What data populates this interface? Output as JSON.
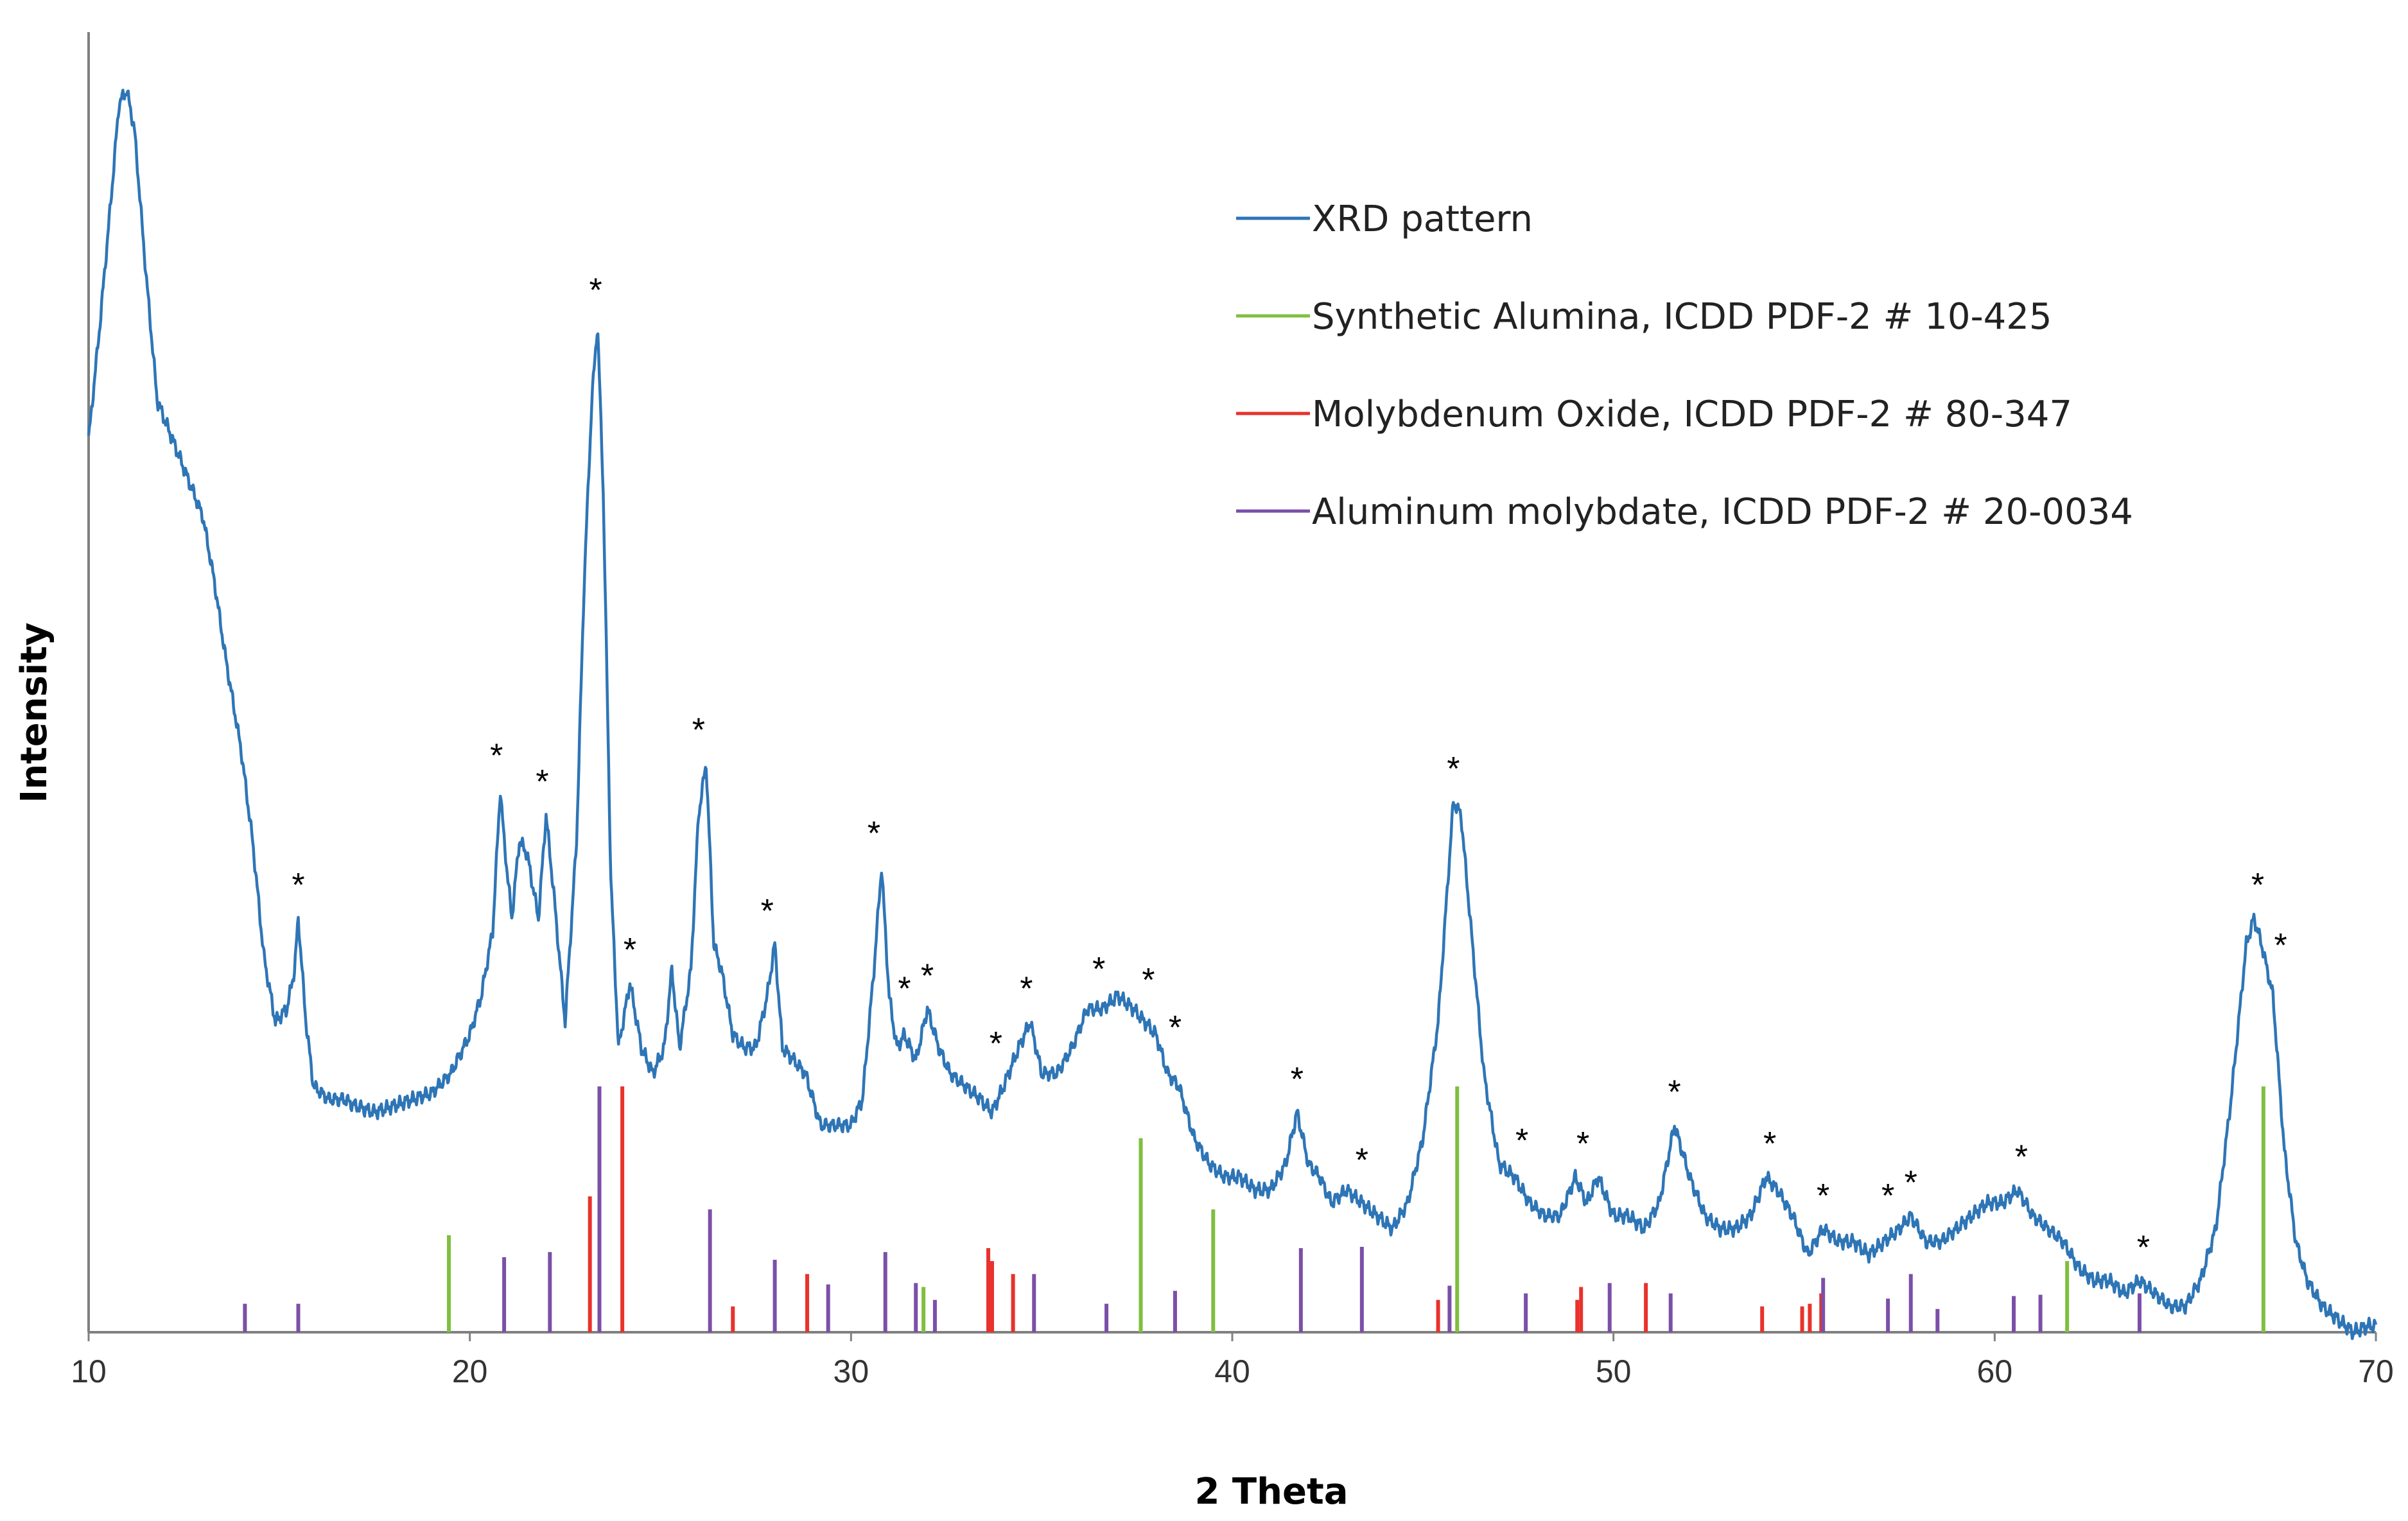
{
  "chart_data": {
    "type": "line",
    "title": "",
    "xlabel": "2 Theta",
    "ylabel": "Intensity",
    "xlim": [
      10,
      70
    ],
    "ylim": [
      0,
      100
    ],
    "xticks": [
      10,
      20,
      30,
      40,
      50,
      60,
      70
    ],
    "series": [
      {
        "name": "XRD pattern",
        "color": "#2E75B6",
        "points": [
          [
            10.0,
            69
          ],
          [
            10.3,
            78
          ],
          [
            10.6,
            88
          ],
          [
            10.8,
            95
          ],
          [
            11.0,
            96
          ],
          [
            11.2,
            93
          ],
          [
            11.5,
            82
          ],
          [
            11.8,
            72
          ],
          [
            12.2,
            69
          ],
          [
            12.6,
            66
          ],
          [
            13.0,
            63
          ],
          [
            13.3,
            58
          ],
          [
            13.6,
            52
          ],
          [
            14.0,
            45
          ],
          [
            14.3,
            38
          ],
          [
            14.6,
            29
          ],
          [
            14.9,
            24
          ],
          [
            15.2,
            25
          ],
          [
            15.4,
            28
          ],
          [
            15.5,
            32
          ],
          [
            15.7,
            24
          ],
          [
            15.9,
            19
          ],
          [
            16.3,
            18
          ],
          [
            16.7,
            18
          ],
          [
            17.0,
            17.5
          ],
          [
            17.5,
            17
          ],
          [
            18.0,
            17.5
          ],
          [
            18.5,
            18
          ],
          [
            19.0,
            18.5
          ],
          [
            19.5,
            20
          ],
          [
            20.0,
            23
          ],
          [
            20.3,
            26
          ],
          [
            20.6,
            31
          ],
          [
            20.8,
            42
          ],
          [
            20.9,
            38
          ],
          [
            21.1,
            32
          ],
          [
            21.3,
            38
          ],
          [
            21.5,
            37
          ],
          [
            21.8,
            32
          ],
          [
            22.0,
            40
          ],
          [
            22.2,
            34
          ],
          [
            22.5,
            24
          ],
          [
            22.8,
            38
          ],
          [
            23.0,
            58
          ],
          [
            23.2,
            72
          ],
          [
            23.35,
            78
          ],
          [
            23.5,
            65
          ],
          [
            23.7,
            35
          ],
          [
            23.9,
            22
          ],
          [
            24.2,
            27
          ],
          [
            24.5,
            22
          ],
          [
            24.8,
            20
          ],
          [
            25.1,
            22
          ],
          [
            25.3,
            28
          ],
          [
            25.5,
            22
          ],
          [
            25.8,
            28
          ],
          [
            26.0,
            40
          ],
          [
            26.2,
            44
          ],
          [
            26.4,
            30
          ],
          [
            26.6,
            28
          ],
          [
            26.9,
            23
          ],
          [
            27.2,
            22
          ],
          [
            27.5,
            22
          ],
          [
            27.8,
            26
          ],
          [
            28.0,
            30
          ],
          [
            28.2,
            22
          ],
          [
            28.5,
            21
          ],
          [
            28.8,
            20
          ],
          [
            29.2,
            16
          ],
          [
            29.6,
            16
          ],
          [
            30.0,
            16
          ],
          [
            30.3,
            18
          ],
          [
            30.6,
            28
          ],
          [
            30.8,
            36
          ],
          [
            31.0,
            26
          ],
          [
            31.2,
            22
          ],
          [
            31.4,
            23
          ],
          [
            31.7,
            21
          ],
          [
            32.0,
            25
          ],
          [
            32.3,
            22
          ],
          [
            32.6,
            20
          ],
          [
            33.0,
            19
          ],
          [
            33.4,
            18
          ],
          [
            33.7,
            17
          ],
          [
            34.0,
            19
          ],
          [
            34.4,
            22
          ],
          [
            34.7,
            24
          ],
          [
            35.0,
            20
          ],
          [
            35.4,
            20
          ],
          [
            35.8,
            22
          ],
          [
            36.2,
            25
          ],
          [
            36.6,
            25
          ],
          [
            37.0,
            26
          ],
          [
            37.4,
            25
          ],
          [
            37.7,
            24
          ],
          [
            38.0,
            23
          ],
          [
            38.3,
            20
          ],
          [
            38.6,
            19
          ],
          [
            39.0,
            15
          ],
          [
            39.4,
            13
          ],
          [
            39.8,
            12
          ],
          [
            40.2,
            12
          ],
          [
            40.6,
            11
          ],
          [
            41.0,
            11
          ],
          [
            41.4,
            13
          ],
          [
            41.7,
            17
          ],
          [
            42.0,
            13
          ],
          [
            42.3,
            12
          ],
          [
            42.6,
            10
          ],
          [
            43.0,
            11
          ],
          [
            43.4,
            10
          ],
          [
            43.8,
            9
          ],
          [
            44.2,
            8
          ],
          [
            44.6,
            10
          ],
          [
            45.0,
            15
          ],
          [
            45.4,
            24
          ],
          [
            45.8,
            41
          ],
          [
            46.0,
            40
          ],
          [
            46.3,
            30
          ],
          [
            46.6,
            20
          ],
          [
            47.0,
            13
          ],
          [
            47.4,
            12
          ],
          [
            47.8,
            10
          ],
          [
            48.2,
            9
          ],
          [
            48.6,
            9
          ],
          [
            49.0,
            12
          ],
          [
            49.3,
            10
          ],
          [
            49.6,
            12
          ],
          [
            50.0,
            9
          ],
          [
            50.4,
            9
          ],
          [
            50.8,
            8
          ],
          [
            51.2,
            10
          ],
          [
            51.6,
            16
          ],
          [
            52.0,
            12
          ],
          [
            52.4,
            9
          ],
          [
            52.8,
            8
          ],
          [
            53.2,
            8
          ],
          [
            53.6,
            9
          ],
          [
            54.0,
            12
          ],
          [
            54.3,
            11
          ],
          [
            54.7,
            9
          ],
          [
            55.1,
            6
          ],
          [
            55.5,
            8
          ],
          [
            55.9,
            7
          ],
          [
            56.3,
            7
          ],
          [
            56.7,
            6
          ],
          [
            57.1,
            7
          ],
          [
            57.5,
            8
          ],
          [
            57.8,
            9
          ],
          [
            58.2,
            7
          ],
          [
            58.6,
            7
          ],
          [
            59.0,
            8
          ],
          [
            59.4,
            9
          ],
          [
            59.8,
            10
          ],
          [
            60.2,
            10
          ],
          [
            60.6,
            11
          ],
          [
            61.0,
            9
          ],
          [
            61.4,
            8
          ],
          [
            61.8,
            7
          ],
          [
            62.2,
            5
          ],
          [
            62.6,
            4
          ],
          [
            63.0,
            4
          ],
          [
            63.4,
            3
          ],
          [
            63.8,
            4
          ],
          [
            64.2,
            3
          ],
          [
            64.6,
            2
          ],
          [
            65.0,
            2
          ],
          [
            65.4,
            4
          ],
          [
            65.8,
            8
          ],
          [
            66.2,
            18
          ],
          [
            66.6,
            30
          ],
          [
            66.8,
            32
          ],
          [
            67.0,
            30
          ],
          [
            67.3,
            26
          ],
          [
            67.6,
            14
          ],
          [
            67.9,
            7
          ],
          [
            68.2,
            4
          ],
          [
            68.6,
            2
          ],
          [
            69.0,
            1
          ],
          [
            69.4,
            0
          ],
          [
            69.8,
            0.5
          ],
          [
            70.0,
            0.5
          ]
        ]
      },
      {
        "name": "Synthetic Alumina, ICDD PDF-2 # 10-425",
        "color": "#7FBF3F",
        "sticks": [
          [
            19.45,
            7.5
          ],
          [
            31.9,
            3.5
          ],
          [
            37.6,
            15
          ],
          [
            39.5,
            9.5
          ],
          [
            45.9,
            19
          ],
          [
            61.9,
            5.5
          ],
          [
            67.05,
            19
          ]
        ]
      },
      {
        "name": "Molybdenum Oxide, ICDD PDF-2 # 80-347",
        "color": "#E8322B",
        "sticks": [
          [
            23.15,
            10.5
          ],
          [
            24.0,
            19
          ],
          [
            26.9,
            2
          ],
          [
            28.85,
            4.5
          ],
          [
            33.6,
            6.5
          ],
          [
            33.7,
            5.5
          ],
          [
            34.25,
            4.5
          ],
          [
            45.4,
            2.5
          ],
          [
            49.05,
            2.5
          ],
          [
            49.15,
            3.5
          ],
          [
            50.85,
            3.8
          ],
          [
            53.9,
            2
          ],
          [
            54.95,
            2
          ],
          [
            55.15,
            2.2
          ],
          [
            55.45,
            3
          ]
        ]
      },
      {
        "name": "Aluminum molybdate, ICDD PDF-2 # 20-0034",
        "color": "#7B4FA8",
        "sticks": [
          [
            14.1,
            2.2
          ],
          [
            15.5,
            2.2
          ],
          [
            20.9,
            5.8
          ],
          [
            22.1,
            6.2
          ],
          [
            23.4,
            19
          ],
          [
            26.3,
            9.5
          ],
          [
            28.0,
            5.6
          ],
          [
            29.4,
            3.7
          ],
          [
            30.9,
            6.2
          ],
          [
            31.7,
            3.8
          ],
          [
            32.2,
            2.5
          ],
          [
            34.8,
            4.5
          ],
          [
            36.7,
            2.2
          ],
          [
            38.5,
            3.2
          ],
          [
            41.8,
            6.5
          ],
          [
            43.4,
            6.6
          ],
          [
            45.7,
            3.6
          ],
          [
            47.7,
            3
          ],
          [
            49.9,
            3.8
          ],
          [
            51.5,
            3
          ],
          [
            55.5,
            4.2
          ],
          [
            57.2,
            2.6
          ],
          [
            57.8,
            4.5
          ],
          [
            58.5,
            1.8
          ],
          [
            60.5,
            2.8
          ],
          [
            61.2,
            2.9
          ],
          [
            63.8,
            3
          ]
        ]
      }
    ],
    "legend": {
      "placement": "top-right",
      "entries": [
        "XRD pattern",
        "Synthetic Alumina, ICDD PDF-2 # 10-425",
        "Molybdenum Oxide, ICDD PDF-2 # 80-347",
        "Aluminum molybdate, ICDD PDF-2 # 20-0034"
      ]
    },
    "annotations": {
      "marker": "*",
      "peaks": [
        15.5,
        20.7,
        21.9,
        23.3,
        24.2,
        26.0,
        27.8,
        30.6,
        31.4,
        32.0,
        33.8,
        34.6,
        36.5,
        37.8,
        38.5,
        41.7,
        43.4,
        45.8,
        47.6,
        49.2,
        51.6,
        54.1,
        55.5,
        57.2,
        57.8,
        60.7,
        63.9,
        66.9,
        67.5
      ]
    }
  }
}
